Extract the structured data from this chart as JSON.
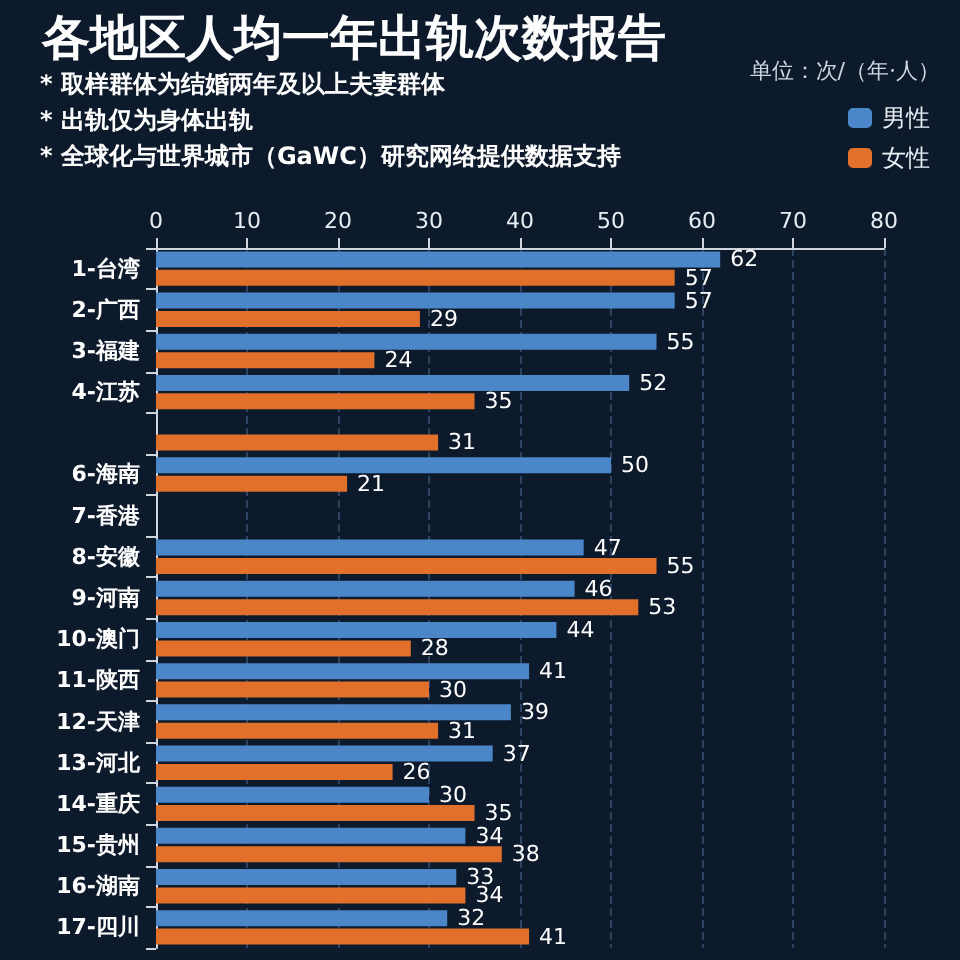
{
  "chart_data": {
    "type": "bar",
    "orientation": "horizontal",
    "title": "各地区人均一年出轨次数报告",
    "annotations": [
      "* 取样群体为结婚两年及以上夫妻群体",
      "* 出轨仅为身体出轨",
      "* 全球化与世界城市（GaWC）研究网络提供数据支持",
      "单位：次/（年·人）"
    ],
    "categories": [
      "1-台湾",
      "2-广西",
      "3-福建",
      "4-江苏",
      null,
      "6-海南",
      "7-香港",
      "8-安徽",
      "9-河南",
      "10-澳门",
      "11-陕西",
      "12-天津",
      "13-河北",
      "14-重庆",
      "15-贵州",
      "16-湖南",
      "17-四川"
    ],
    "series": [
      {
        "name": "男性",
        "color": "#4a86c8",
        "values": [
          62,
          57,
          55,
          52,
          null,
          50,
          null,
          47,
          46,
          44,
          41,
          39,
          37,
          30,
          34,
          33,
          32
        ]
      },
      {
        "name": "女性",
        "color": "#e0702a",
        "values": [
          57,
          29,
          24,
          35,
          31,
          21,
          null,
          55,
          53,
          28,
          30,
          31,
          26,
          35,
          38,
          34,
          41
        ]
      }
    ],
    "xlim": [
      0,
      80
    ],
    "xticks": [
      0,
      10,
      20,
      30,
      40,
      50,
      60,
      70,
      80
    ],
    "grid": "x",
    "legend": "top right",
    "data_labels": true
  }
}
